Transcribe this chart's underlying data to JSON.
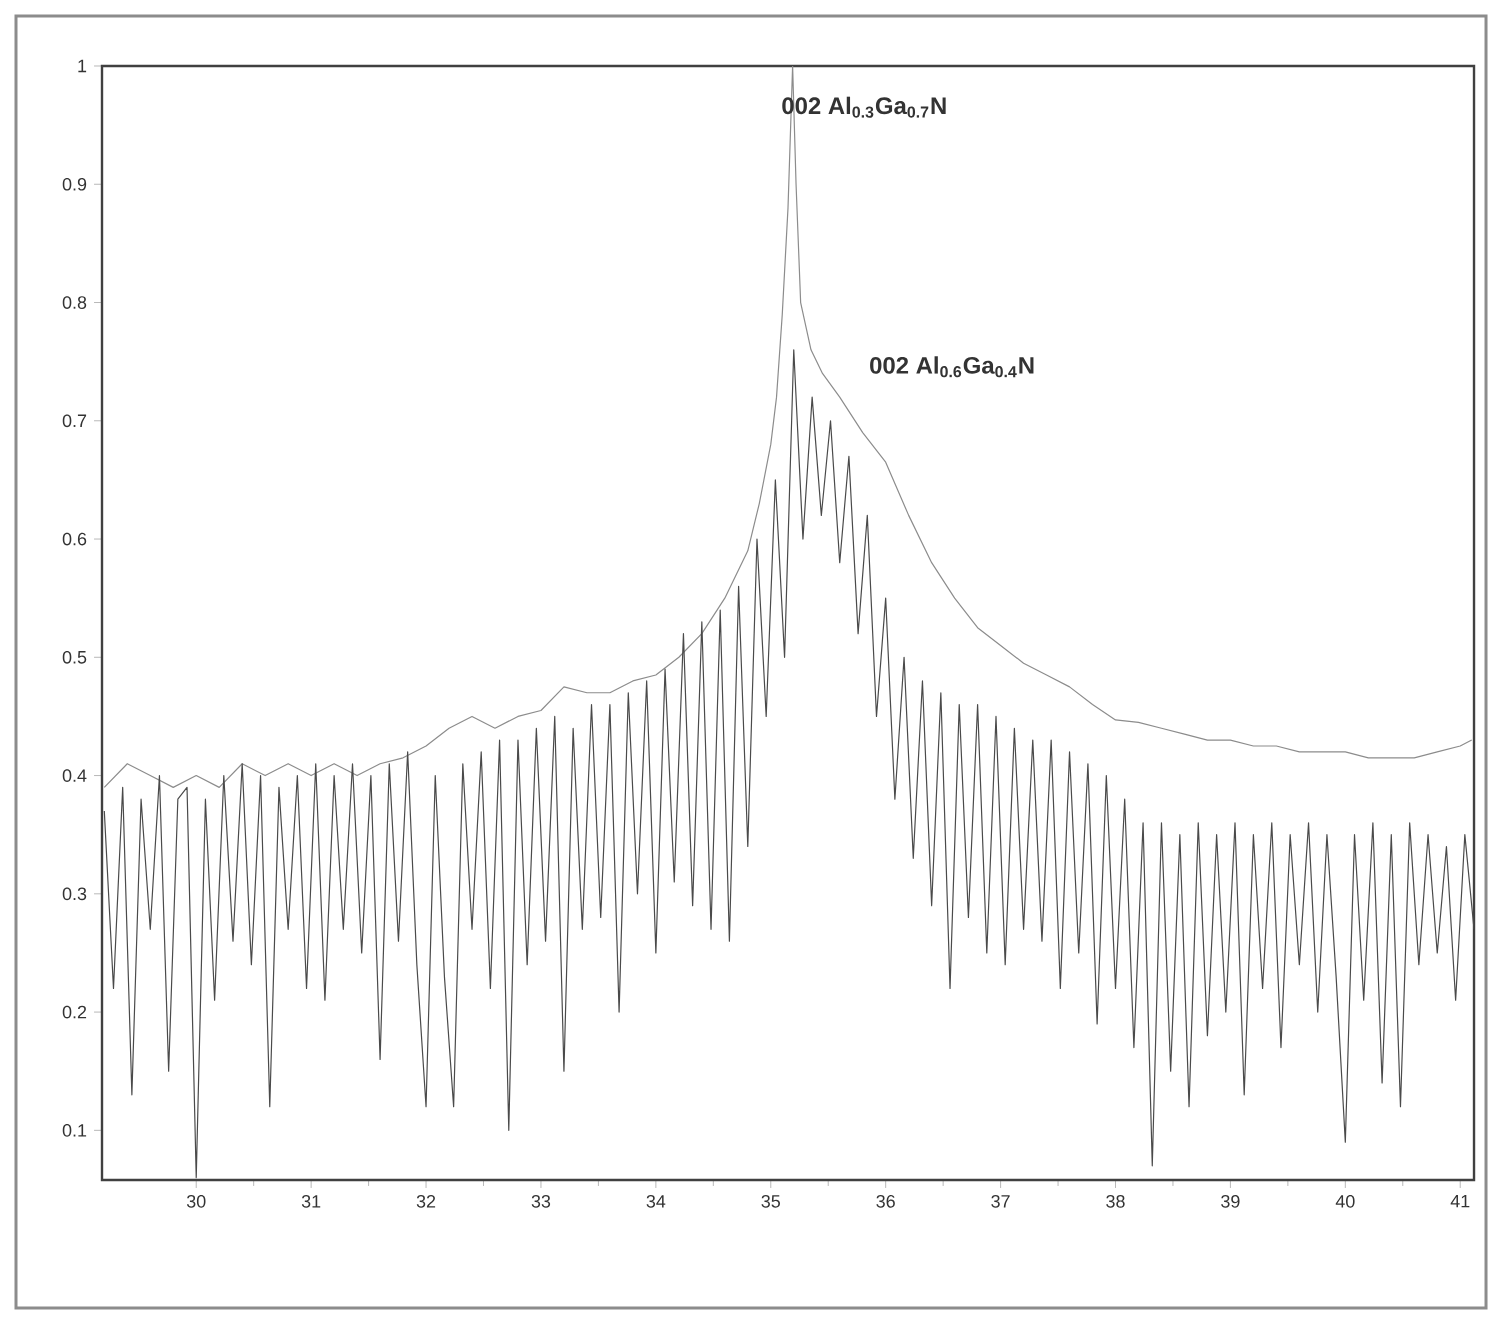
{
  "chart_data": {
    "type": "line",
    "xlim": [
      29.18,
      41.12
    ],
    "ylim": [
      0.058,
      1
    ],
    "xticks": [
      30,
      31,
      32,
      33,
      34,
      35,
      36,
      37,
      38,
      39,
      40,
      41
    ],
    "yticks": [
      0.1,
      0.2,
      0.3,
      0.4,
      0.5,
      0.6,
      0.7,
      0.8,
      0.9,
      1
    ],
    "grid": false,
    "legend": false,
    "marker": "none",
    "line_style": "solid",
    "annotations": [
      "002 Al$_{0.3}$Ga$_{0.7}$N",
      "002 Al$_{0.6}$Ga$_{0.4}$N"
    ],
    "series": [
      {
        "color": "#8c8c8c",
        "x": [
          29.2,
          29.4,
          29.6,
          29.8,
          30.0,
          30.2,
          30.4,
          30.6,
          30.8,
          31.0,
          31.2,
          31.4,
          31.6,
          31.8,
          32.0,
          32.2,
          32.4,
          32.6,
          32.8,
          33.0,
          33.2,
          33.4,
          33.6,
          33.8,
          34.0,
          34.2,
          34.4,
          34.6,
          34.8,
          34.9,
          35.0,
          35.05,
          35.1,
          35.15,
          35.19,
          35.22,
          35.26,
          35.35,
          35.45,
          35.6,
          35.8,
          36.0,
          36.2,
          36.4,
          36.6,
          36.8,
          37.0,
          37.2,
          37.4,
          37.6,
          37.8,
          38.0,
          38.2,
          38.4,
          38.6,
          38.8,
          39.0,
          39.2,
          39.4,
          39.6,
          39.8,
          40.0,
          40.2,
          40.4,
          40.6,
          40.8,
          41.0,
          41.1
        ],
        "values": [
          0.39,
          0.41,
          0.4,
          0.39,
          0.4,
          0.39,
          0.41,
          0.4,
          0.41,
          0.4,
          0.41,
          0.4,
          0.41,
          0.415,
          0.425,
          0.44,
          0.45,
          0.44,
          0.45,
          0.455,
          0.475,
          0.47,
          0.47,
          0.48,
          0.485,
          0.5,
          0.52,
          0.55,
          0.59,
          0.63,
          0.68,
          0.72,
          0.79,
          0.88,
          1.0,
          0.9,
          0.8,
          0.76,
          0.74,
          0.72,
          0.69,
          0.665,
          0.62,
          0.58,
          0.55,
          0.525,
          0.51,
          0.495,
          0.485,
          0.475,
          0.46,
          0.447,
          0.445,
          0.44,
          0.435,
          0.43,
          0.43,
          0.425,
          0.425,
          0.42,
          0.42,
          0.42,
          0.415,
          0.415,
          0.415,
          0.42,
          0.425,
          0.43
        ]
      },
      {
        "color": "#4a4a4a",
        "x": [
          29.2,
          29.28,
          29.36,
          29.44,
          29.52,
          29.6,
          29.68,
          29.76,
          29.84,
          29.92,
          30.0,
          30.08,
          30.16,
          30.24,
          30.32,
          30.4,
          30.48,
          30.56,
          30.64,
          30.72,
          30.8,
          30.88,
          30.96,
          31.04,
          31.12,
          31.2,
          31.28,
          31.36,
          31.44,
          31.52,
          31.6,
          31.68,
          31.76,
          31.84,
          31.92,
          32.0,
          32.08,
          32.16,
          32.24,
          32.32,
          32.4,
          32.48,
          32.56,
          32.64,
          32.72,
          32.8,
          32.88,
          32.96,
          33.04,
          33.12,
          33.2,
          33.28,
          33.36,
          33.44,
          33.52,
          33.6,
          33.68,
          33.76,
          33.84,
          33.92,
          34.0,
          34.08,
          34.16,
          34.24,
          34.32,
          34.4,
          34.48,
          34.56,
          34.64,
          34.72,
          34.8,
          34.88,
          34.96,
          35.04,
          35.12,
          35.2,
          35.28,
          35.36,
          35.44,
          35.52,
          35.6,
          35.68,
          35.76,
          35.84,
          35.92,
          36.0,
          36.08,
          36.16,
          36.24,
          36.32,
          36.4,
          36.48,
          36.56,
          36.64,
          36.72,
          36.8,
          36.88,
          36.96,
          37.04,
          37.12,
          37.2,
          37.28,
          37.36,
          37.44,
          37.52,
          37.6,
          37.68,
          37.76,
          37.84,
          37.92,
          38.0,
          38.08,
          38.16,
          38.24,
          38.32,
          38.4,
          38.48,
          38.56,
          38.64,
          38.72,
          38.8,
          38.88,
          38.96,
          39.04,
          39.12,
          39.2,
          39.28,
          39.36,
          39.44,
          39.52,
          39.6,
          39.68,
          39.76,
          39.84,
          39.92,
          40.0,
          40.08,
          40.16,
          40.24,
          40.32,
          40.4,
          40.48,
          40.56,
          40.64,
          40.72,
          40.8,
          40.88,
          40.96,
          41.04,
          41.12
        ],
        "values": [
          0.37,
          0.22,
          0.39,
          0.13,
          0.38,
          0.27,
          0.4,
          0.15,
          0.38,
          0.39,
          0.06,
          0.38,
          0.21,
          0.4,
          0.26,
          0.41,
          0.24,
          0.4,
          0.12,
          0.39,
          0.27,
          0.4,
          0.22,
          0.41,
          0.21,
          0.4,
          0.27,
          0.41,
          0.25,
          0.4,
          0.16,
          0.41,
          0.26,
          0.42,
          0.24,
          0.12,
          0.4,
          0.23,
          0.12,
          0.41,
          0.27,
          0.42,
          0.22,
          0.43,
          0.1,
          0.43,
          0.24,
          0.44,
          0.26,
          0.45,
          0.15,
          0.44,
          0.27,
          0.46,
          0.28,
          0.46,
          0.2,
          0.47,
          0.3,
          0.48,
          0.25,
          0.49,
          0.31,
          0.52,
          0.29,
          0.53,
          0.27,
          0.54,
          0.26,
          0.56,
          0.34,
          0.6,
          0.45,
          0.65,
          0.5,
          0.76,
          0.6,
          0.72,
          0.62,
          0.7,
          0.58,
          0.67,
          0.52,
          0.62,
          0.45,
          0.55,
          0.38,
          0.5,
          0.33,
          0.48,
          0.29,
          0.47,
          0.22,
          0.46,
          0.28,
          0.46,
          0.25,
          0.45,
          0.24,
          0.44,
          0.27,
          0.43,
          0.26,
          0.43,
          0.22,
          0.42,
          0.25,
          0.41,
          0.19,
          0.4,
          0.22,
          0.38,
          0.17,
          0.36,
          0.07,
          0.36,
          0.15,
          0.35,
          0.12,
          0.36,
          0.18,
          0.35,
          0.2,
          0.36,
          0.13,
          0.35,
          0.22,
          0.36,
          0.17,
          0.35,
          0.24,
          0.36,
          0.2,
          0.35,
          0.23,
          0.09,
          0.35,
          0.21,
          0.36,
          0.14,
          0.35,
          0.12,
          0.36,
          0.24,
          0.35,
          0.25,
          0.34,
          0.21,
          0.35,
          0.27
        ]
      }
    ]
  }
}
